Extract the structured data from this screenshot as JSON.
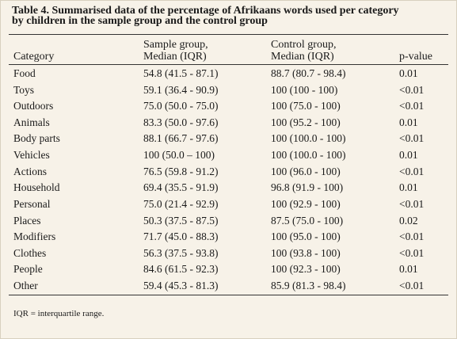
{
  "table": {
    "title": [
      "Table 4. Summarised data of the percentage of Afrikaans words used per category",
      "by children in the sample group and the control group"
    ],
    "columns": [
      [
        "Category"
      ],
      [
        "Sample group,",
        "Median (IQR)"
      ],
      [
        "Control group,",
        "Median (IQR)"
      ],
      [
        "p-value"
      ]
    ],
    "rows": [
      [
        "Food",
        "54.8 (41.5 - 87.1)",
        "88.7 (80.7 - 98.4)",
        "0.01"
      ],
      [
        "Toys",
        "59.1 (36.4 - 90.9)",
        "100 (100 - 100)",
        "<0.01"
      ],
      [
        "Outdoors",
        "75.0 (50.0 - 75.0)",
        "100 (75.0 - 100)",
        "<0.01"
      ],
      [
        "Animals",
        "83.3 (50.0 - 97.6)",
        "100 (95.2 - 100)",
        "0.01"
      ],
      [
        "Body parts",
        "88.1 (66.7 - 97.6)",
        "100 (100.0 - 100)",
        "<0.01"
      ],
      [
        "Vehicles",
        "100 (50.0 – 100)",
        "100 (100.0 - 100)",
        "0.01"
      ],
      [
        "Actions",
        "76.5 (59.8 - 91.2)",
        "100 (96.0 - 100)",
        "<0.01"
      ],
      [
        "Household",
        "69.4 (35.5 - 91.9)",
        "96.8 (91.9 - 100)",
        "0.01"
      ],
      [
        "Personal",
        "75.0 (21.4 - 92.9)",
        "100 (92.9 - 100)",
        "<0.01"
      ],
      [
        "Places",
        "50.3 (37.5 - 87.5)",
        "87.5 (75.0 - 100)",
        "0.02"
      ],
      [
        "Modifiers",
        "71.7 (45.0 - 88.3)",
        "100 (95.0 - 100)",
        "<0.01"
      ],
      [
        "Clothes",
        "56.3 (37.5 - 93.8)",
        "100 (93.8 - 100)",
        "<0.01"
      ],
      [
        "People",
        "84.6 (61.5 - 92.3)",
        "100 (92.3 - 100)",
        "0.01"
      ],
      [
        "Other",
        "59.4 (45.3 - 81.3)",
        "85.9 (81.3 - 98.4)",
        "<0.01"
      ]
    ],
    "footnote": "IQR = interquartile range."
  }
}
